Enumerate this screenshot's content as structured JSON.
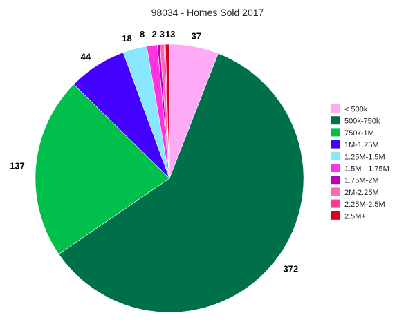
{
  "chart_data": {
    "type": "pie",
    "title": "98034 - Homes Sold 2017",
    "categories": [
      "< 500k",
      "500k-750k",
      "750k-1M",
      "1M-1.25M",
      "1.25M-1.5M",
      "1.5M - 1.75M",
      "1.75M-2M",
      "2M-2.25M",
      "2.25M-2.5M",
      "2.5M+"
    ],
    "values": [
      37,
      372,
      137,
      44,
      18,
      8,
      2,
      3,
      1,
      3
    ],
    "colors": [
      "#ffaaf7",
      "#00704a",
      "#00c04b",
      "#4400ff",
      "#88e8ff",
      "#ff33e0",
      "#bb00bb",
      "#ff66b4",
      "#ff3a8e",
      "#dd0022"
    ],
    "legend_position": "right"
  }
}
